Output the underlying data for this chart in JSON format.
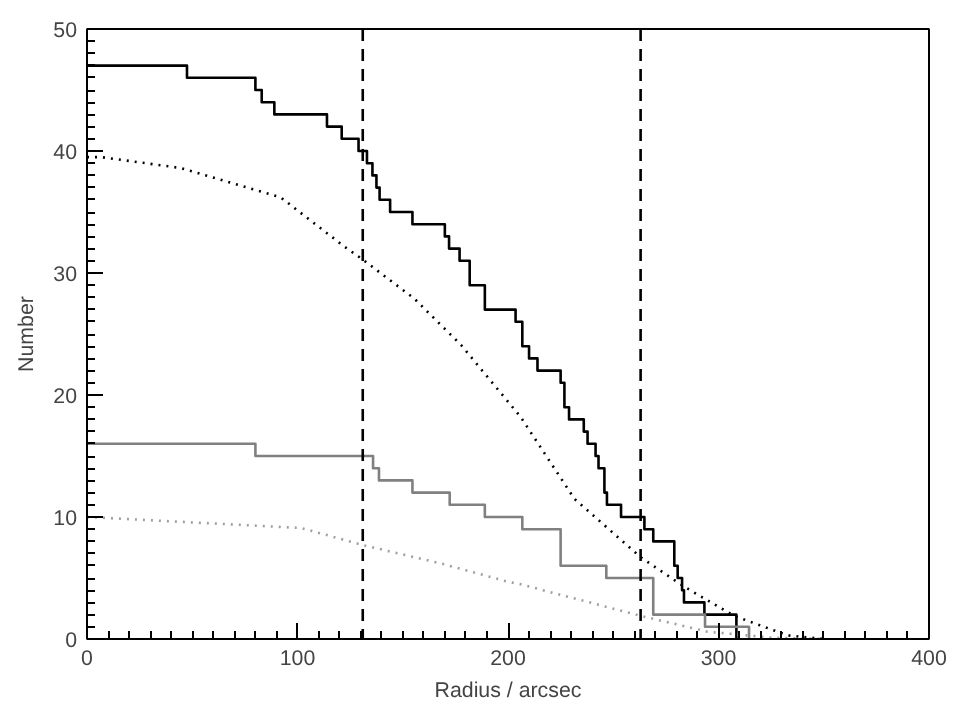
{
  "chart_data": {
    "type": "step",
    "xlabel": "Radius / arcsec",
    "ylabel": "Number",
    "xlim": [
      0,
      400
    ],
    "ylim": [
      0,
      50
    ],
    "xticks": [
      0,
      100,
      200,
      300,
      400
    ],
    "yticks": [
      0,
      10,
      20,
      30,
      40,
      50
    ],
    "grid": false,
    "series": [
      {
        "color": "#000000",
        "line_style": "solid",
        "x": [
          0,
          47.5,
          80,
          83,
          89,
          114,
          121,
          129,
          133,
          135.6,
          137.5,
          139,
          144,
          154.6,
          170,
          172,
          177,
          181.8,
          189,
          203.6,
          206.8,
          210,
          214,
          225,
          226.8,
          229,
          236,
          237.8,
          241.6,
          243,
          245.8,
          247,
          253.7,
          264.8,
          269,
          279,
          280.6,
          282.7,
          283.6,
          293.3,
          308.5
        ],
        "values": [
          47,
          46,
          45,
          44,
          43,
          42,
          41,
          40,
          39,
          38,
          37,
          36,
          35,
          34,
          33,
          32,
          31,
          29,
          27,
          26,
          24,
          23,
          22,
          21,
          19,
          18,
          17,
          16,
          15,
          14,
          12,
          11,
          10,
          9,
          8,
          6,
          5,
          4,
          3,
          2,
          0
        ]
      },
      {
        "color": "#808080",
        "line_style": "solid",
        "x": [
          0,
          80,
          135.9,
          138.7,
          154.6,
          172.3,
          189,
          206.8,
          225,
          246.7,
          269,
          293.6,
          314.5
        ],
        "values": [
          16,
          15,
          14,
          13,
          12,
          11,
          10,
          9,
          6,
          5,
          2,
          1,
          0
        ]
      },
      {
        "type": "line",
        "color": "#000000",
        "line_style": "dotted",
        "x": [
          0,
          6.7,
          44.7,
          92,
          122,
          131,
          155.5,
          177.7,
          206,
          231.5,
          263,
          283.6,
          307.4,
          332.8,
          350
        ],
        "values": [
          39.5,
          39.5,
          38.6,
          36.2,
          32.2,
          31.1,
          27.9,
          24.1,
          18.2,
          11.5,
          6.7,
          4.3,
          1.9,
          0.3,
          0
        ]
      },
      {
        "type": "line",
        "color": "#a0a0a0",
        "line_style": "dotted",
        "x": [
          0,
          101.7,
          131,
          168,
          199.8,
          205.6,
          263,
          294.8,
          326,
          350
        ],
        "values": [
          10,
          9.1,
          7.7,
          6.2,
          4.7,
          4.5,
          1.9,
          0.6,
          0.1,
          0
        ]
      }
    ],
    "ref_lines": [
      {
        "axis": "x",
        "value": 131,
        "color": "#000000",
        "line_style": "dashed"
      },
      {
        "axis": "x",
        "value": 263,
        "color": "#000000",
        "line_style": "dashed"
      }
    ]
  }
}
